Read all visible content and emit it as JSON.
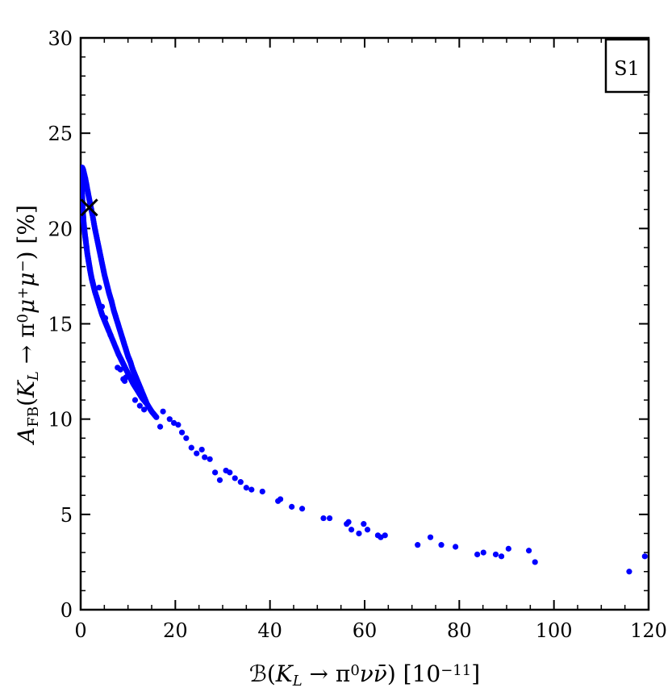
{
  "chart_data": {
    "type": "scatter",
    "xlim": [
      0,
      120
    ],
    "ylim": [
      0,
      30
    ],
    "x_ticks": [
      "0",
      "20",
      "40",
      "60",
      "80",
      "100",
      "120"
    ],
    "y_ticks": [
      "0",
      "5",
      "10",
      "15",
      "20",
      "25",
      "30"
    ],
    "xlabel": {
      "parts": [
        "ℬ(",
        "K",
        "L",
        " → π",
        "0",
        "ν",
        "ν̄",
        ")  [10",
        "−11",
        "]"
      ]
    },
    "ylabel": {
      "parts": [
        "A",
        "FB",
        "(",
        "K",
        "L",
        " → π",
        "0",
        "μ",
        "+",
        "μ",
        "−",
        ")  [%]"
      ]
    },
    "legend_label": "S1",
    "marker_color": "#0000ff",
    "reference_point": {
      "x": 1.8,
      "y": 21.1,
      "marker": "cross"
    },
    "upper_branch": {
      "x": [
        0.1,
        0.2,
        0.3,
        0.5,
        0.7,
        1.0,
        1.3,
        1.6,
        2.0,
        2.5,
        3.0,
        3.5,
        4.0,
        4.5,
        5.0,
        5.5,
        6.0,
        6.5,
        7.0,
        7.5,
        8.0,
        8.5,
        9.0,
        9.5,
        10.0,
        10.5,
        11.0,
        11.5,
        12.0,
        12.5,
        13.0,
        13.5,
        14.0
      ],
      "y": [
        22.9,
        23.1,
        23.2,
        23.1,
        22.9,
        22.6,
        22.2,
        21.8,
        21.3,
        20.7,
        20.0,
        19.4,
        18.8,
        18.2,
        17.6,
        17.1,
        16.6,
        16.2,
        15.7,
        15.3,
        14.9,
        14.5,
        14.1,
        13.7,
        13.3,
        13.0,
        12.6,
        12.3,
        12.0,
        11.7,
        11.4,
        11.1,
        10.8
      ]
    },
    "lower_branch": {
      "x": [
        0.1,
        0.2,
        0.3,
        0.4,
        0.5,
        0.6,
        0.8,
        1.0,
        1.2,
        1.4,
        1.6,
        1.8,
        2.0,
        2.3,
        2.6,
        3.0,
        3.5,
        4.0,
        4.5,
        5.0,
        5.5,
        6.0,
        7.0,
        8.0,
        9.0,
        10.0,
        11.0,
        12.0,
        13.0,
        14.0,
        15.0,
        16.0
      ],
      "y": [
        22.8,
        22.3,
        21.8,
        21.3,
        20.8,
        20.4,
        19.9,
        19.5,
        19.1,
        18.7,
        18.4,
        18.1,
        17.8,
        17.4,
        17.1,
        16.7,
        16.3,
        15.9,
        15.5,
        15.2,
        14.9,
        14.6,
        14.0,
        13.4,
        12.9,
        12.4,
        11.9,
        11.5,
        11.1,
        10.8,
        10.4,
        10.1
      ]
    },
    "scattered_points": {
      "x": [
        3.9,
        4.5,
        5.2,
        6.3,
        7.8,
        8.4,
        9.0,
        9.3,
        9.6,
        11.5,
        12.5,
        13.4,
        16.8,
        17.4,
        18.8,
        19.7,
        20.6,
        21.4,
        22.3,
        23.4,
        24.5,
        25.6,
        26.2,
        27.3,
        28.4,
        29.4,
        30.7,
        31.5,
        32.6,
        33.8,
        35.0,
        36.1,
        38.4,
        41.7,
        42.2,
        44.6,
        46.8,
        51.3,
        52.6,
        56.2,
        56.6,
        57.2,
        58.8,
        59.8,
        60.6,
        62.8,
        63.4,
        64.3,
        71.2,
        73.9,
        76.2,
        79.2,
        83.8,
        85.1,
        87.7,
        88.9,
        90.4,
        94.7,
        96.0,
        115.9,
        119.2
      ],
      "y": [
        16.9,
        15.9,
        15.3,
        14.4,
        12.7,
        12.6,
        12.1,
        12.0,
        12.2,
        11.0,
        10.7,
        10.5,
        9.6,
        10.4,
        10.0,
        9.8,
        9.7,
        9.3,
        9.0,
        8.5,
        8.2,
        8.4,
        8.0,
        7.9,
        7.2,
        6.8,
        7.3,
        7.2,
        6.9,
        6.7,
        6.4,
        6.3,
        6.2,
        5.7,
        5.8,
        5.4,
        5.3,
        4.8,
        4.8,
        4.5,
        4.6,
        4.2,
        4.0,
        4.5,
        4.2,
        3.9,
        3.8,
        3.9,
        3.4,
        3.8,
        3.4,
        3.3,
        2.9,
        3.0,
        2.9,
        2.8,
        3.2,
        3.1,
        2.5,
        2.0,
        2.8
      ]
    }
  }
}
